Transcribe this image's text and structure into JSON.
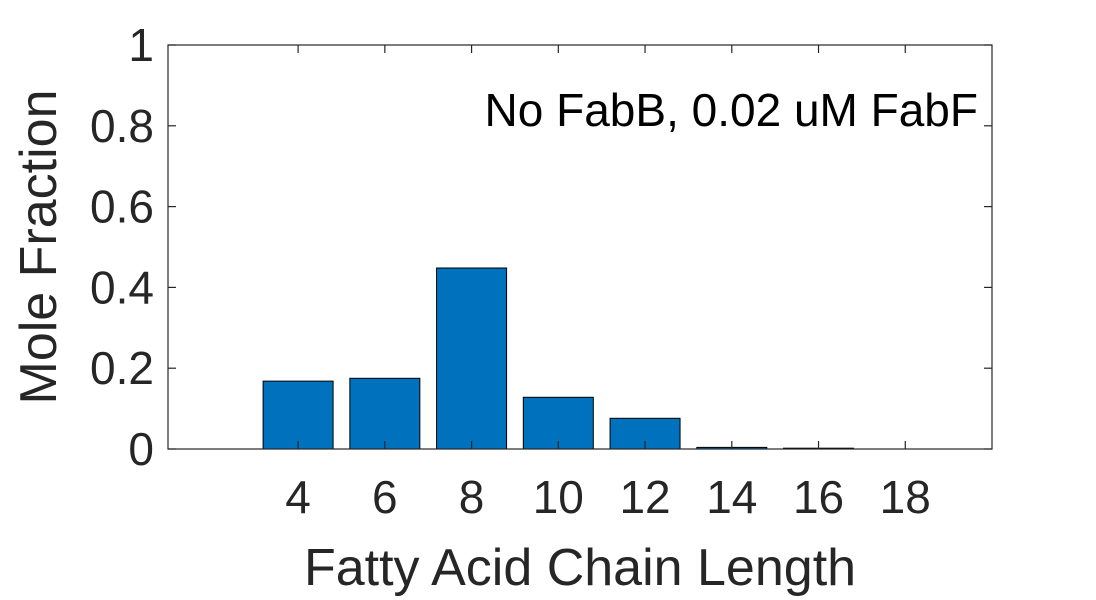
{
  "chart_data": {
    "type": "bar",
    "annotation": "No FabB, 0.02 uM FabF",
    "xlabel": "Fatty Acid Chain Length",
    "ylabel": "Mole Fraction",
    "categories": [
      "4",
      "6",
      "8",
      "10",
      "12",
      "14",
      "16",
      "18"
    ],
    "x": [
      4,
      6,
      8,
      10,
      12,
      14,
      16,
      18
    ],
    "values": [
      0.168,
      0.175,
      0.448,
      0.128,
      0.076,
      0.004,
      0.002,
      0.0
    ],
    "xlim": [
      1,
      20
    ],
    "ylim": [
      0,
      1
    ],
    "yticks": [
      0,
      0.2,
      0.4,
      0.6,
      0.8,
      1
    ],
    "ytick_labels": [
      "0",
      "0.2",
      "0.4",
      "0.6",
      "0.8",
      "1"
    ],
    "grid": false,
    "bar_color": "#0072BD"
  }
}
